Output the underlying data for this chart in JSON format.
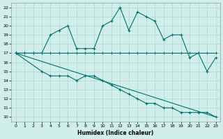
{
  "xlabel": "Humidex (Indice chaleur)",
  "xlim": [
    -0.5,
    23.5
  ],
  "ylim": [
    9.5,
    22.5
  ],
  "yticks": [
    10,
    11,
    12,
    13,
    14,
    15,
    16,
    17,
    18,
    19,
    20,
    21,
    22
  ],
  "xticks": [
    0,
    1,
    2,
    3,
    4,
    5,
    6,
    7,
    8,
    9,
    10,
    11,
    12,
    13,
    14,
    15,
    16,
    17,
    18,
    19,
    20,
    21,
    22,
    23
  ],
  "background_color": "#d0eeea",
  "grid_color": "#b0d8d4",
  "line_color": "#007070",
  "curve_x": [
    0,
    1,
    2,
    3,
    4,
    5,
    6,
    7,
    8,
    9,
    10,
    11,
    12,
    13,
    14,
    15,
    16,
    17,
    18,
    19,
    20,
    21,
    22,
    23
  ],
  "curve_y": [
    17,
    17,
    17,
    17,
    19,
    19.5,
    20,
    17.5,
    17.5,
    17.5,
    20,
    20.5,
    22,
    19.5,
    21.5,
    21,
    20.5,
    18.5,
    19,
    19,
    16.5,
    17,
    15,
    16.5
  ],
  "flat_x": [
    0,
    1,
    2,
    3,
    4,
    5,
    6,
    7,
    8,
    9,
    10,
    11,
    12,
    13,
    14,
    15,
    16,
    17,
    18,
    19,
    20,
    21,
    22,
    23
  ],
  "flat_y": [
    17,
    17,
    17,
    17,
    17,
    17,
    17,
    17,
    17,
    17,
    17,
    17,
    17,
    17,
    17,
    17,
    17,
    17,
    17,
    17,
    17,
    17,
    17,
    17
  ],
  "low_x": [
    0,
    3,
    4,
    5,
    6,
    7,
    8,
    9,
    10,
    11,
    12,
    13,
    14,
    15,
    16,
    17,
    18,
    19,
    20,
    21,
    22,
    23
  ],
  "low_y": [
    17,
    15,
    14.5,
    14.5,
    14.5,
    14,
    14.5,
    14.5,
    14,
    13.5,
    13,
    12.5,
    12,
    11.5,
    11.5,
    11,
    11,
    10.5,
    10.5,
    10.5,
    10.5,
    10
  ],
  "decline_x": [
    0,
    23
  ],
  "decline_y": [
    17,
    10
  ]
}
